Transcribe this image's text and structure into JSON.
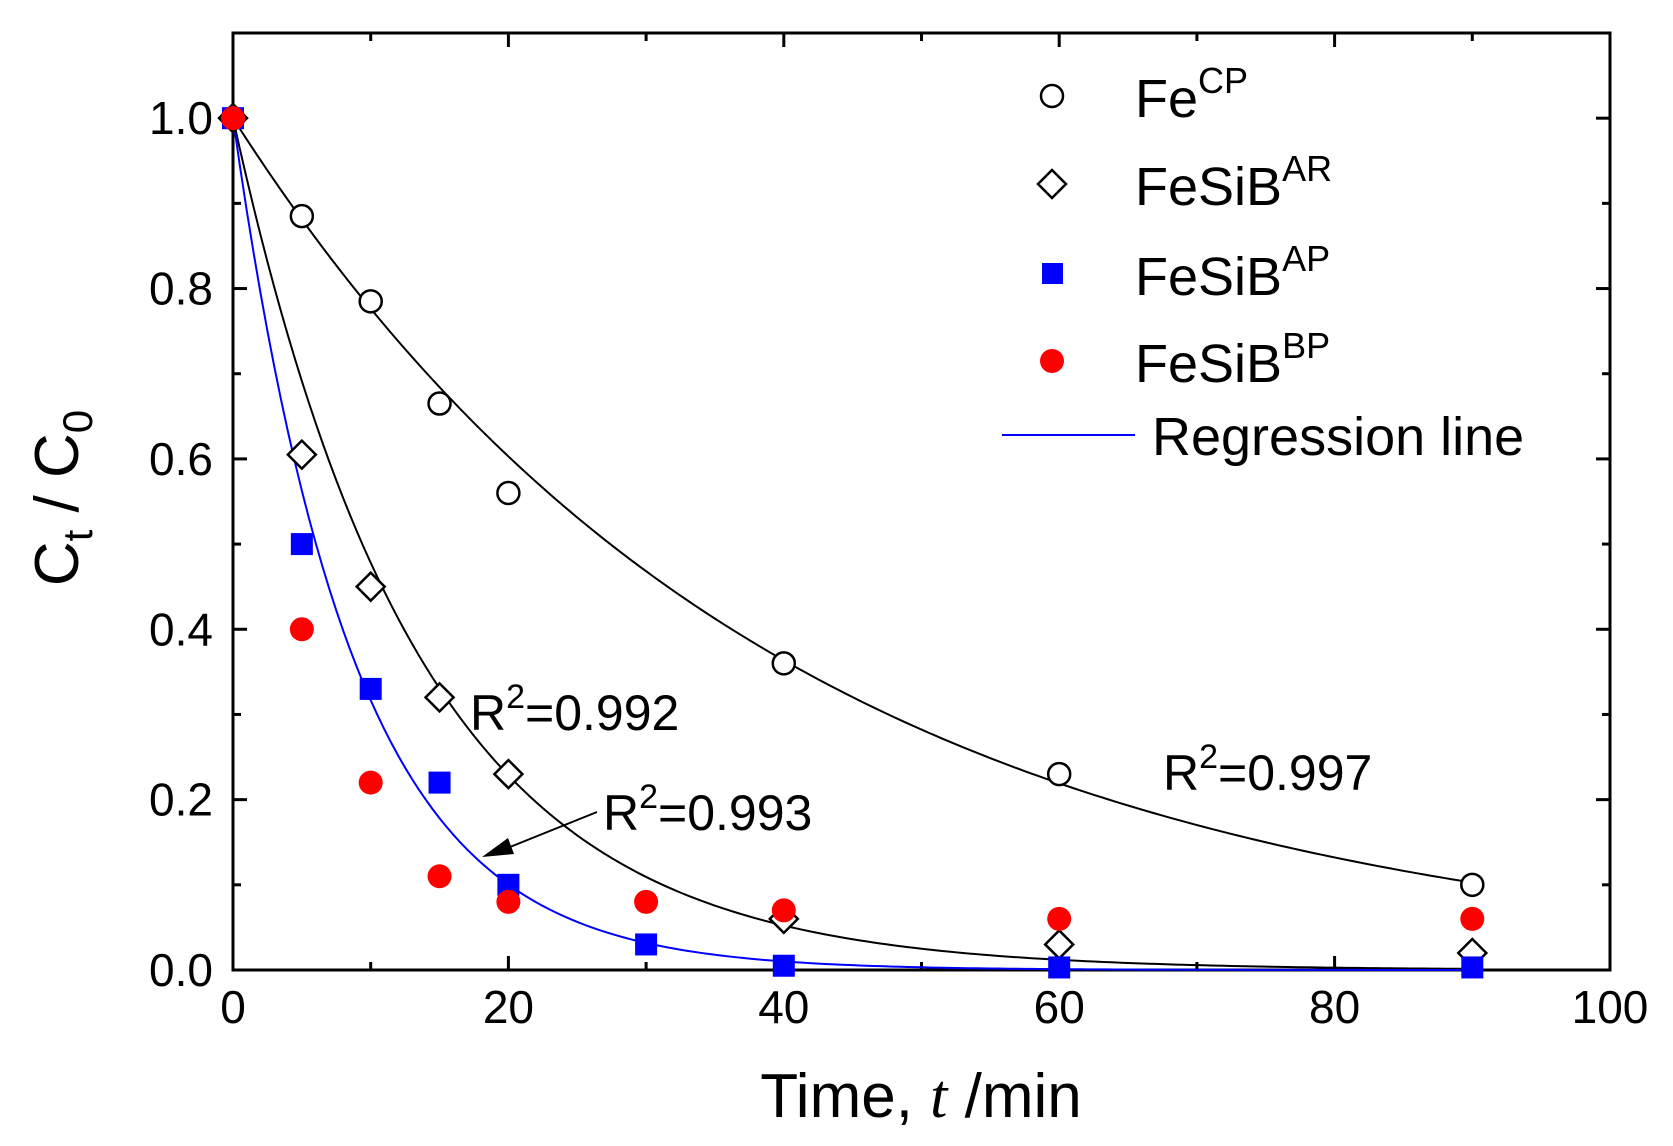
{
  "chart_data": {
    "type": "scatter",
    "title": "",
    "xlabel": {
      "prefix": "Time, ",
      "italic": "t",
      "suffix": " /min"
    },
    "ylabel": {
      "main": "C",
      "sub1": "t",
      "mid": " / C",
      "sub2": "0"
    },
    "xlim": [
      0,
      100
    ],
    "ylim": [
      0,
      1.1
    ],
    "xticks": [
      0,
      20,
      40,
      60,
      80,
      100
    ],
    "xtick_labels": [
      "0",
      "20",
      "40",
      "60",
      "80",
      "100"
    ],
    "yticks": [
      0,
      0.2,
      0.4,
      0.6,
      0.8,
      1.0
    ],
    "ytick_labels": [
      "0.0",
      "0.2",
      "0.4",
      "0.6",
      "0.8",
      "1.0"
    ],
    "grid": false,
    "legend_position": "top-right",
    "series": [
      {
        "name": "Fe",
        "sup": "CP",
        "marker": "open-circle",
        "color": "#000000",
        "x": [
          0,
          5,
          10,
          15,
          20,
          40,
          60,
          90
        ],
        "y": [
          1.0,
          0.885,
          0.785,
          0.665,
          0.56,
          0.36,
          0.23,
          0.1
        ]
      },
      {
        "name": "FeSiB",
        "sup": "AR",
        "marker": "open-diamond",
        "color": "#000000",
        "x": [
          0,
          5,
          10,
          15,
          20,
          40,
          60,
          90
        ],
        "y": [
          1.0,
          0.605,
          0.45,
          0.32,
          0.23,
          0.06,
          0.03,
          0.02
        ]
      },
      {
        "name": "FeSiB",
        "sup": "AP",
        "marker": "filled-square",
        "color": "#0000ff",
        "x": [
          0,
          5,
          10,
          15,
          20,
          30,
          40,
          60,
          90
        ],
        "y": [
          1.0,
          0.5,
          0.33,
          0.22,
          0.1,
          0.03,
          0.005,
          0.003,
          0.003
        ]
      },
      {
        "name": "FeSiB",
        "sup": "BP",
        "marker": "filled-circle",
        "color": "#ff0000",
        "x": [
          0,
          5,
          10,
          15,
          20,
          30,
          40,
          60,
          90
        ],
        "y": [
          1.0,
          0.4,
          0.22,
          0.11,
          0.08,
          0.08,
          0.07,
          0.06,
          0.06
        ]
      }
    ],
    "regression_legend_label": "Regression line",
    "regression_legend_color": "#0000ff",
    "regression_curves": [
      {
        "for": "FeCP",
        "model": "exp",
        "k": 0.0253,
        "color": "#000000",
        "r2_label": "R",
        "r2_sup": "2",
        "r2_value": "=0.997"
      },
      {
        "for": "FeSiBAR",
        "model": "exp",
        "k": 0.0738,
        "color": "#000000",
        "r2_label": "R",
        "r2_sup": "2",
        "r2_value": "=0.992"
      },
      {
        "for": "FeSiBAP",
        "model": "exp",
        "k": 0.115,
        "color": "#0000ff",
        "r2_label": "R",
        "r2_sup": "2",
        "r2_value": "=0.993"
      }
    ]
  }
}
